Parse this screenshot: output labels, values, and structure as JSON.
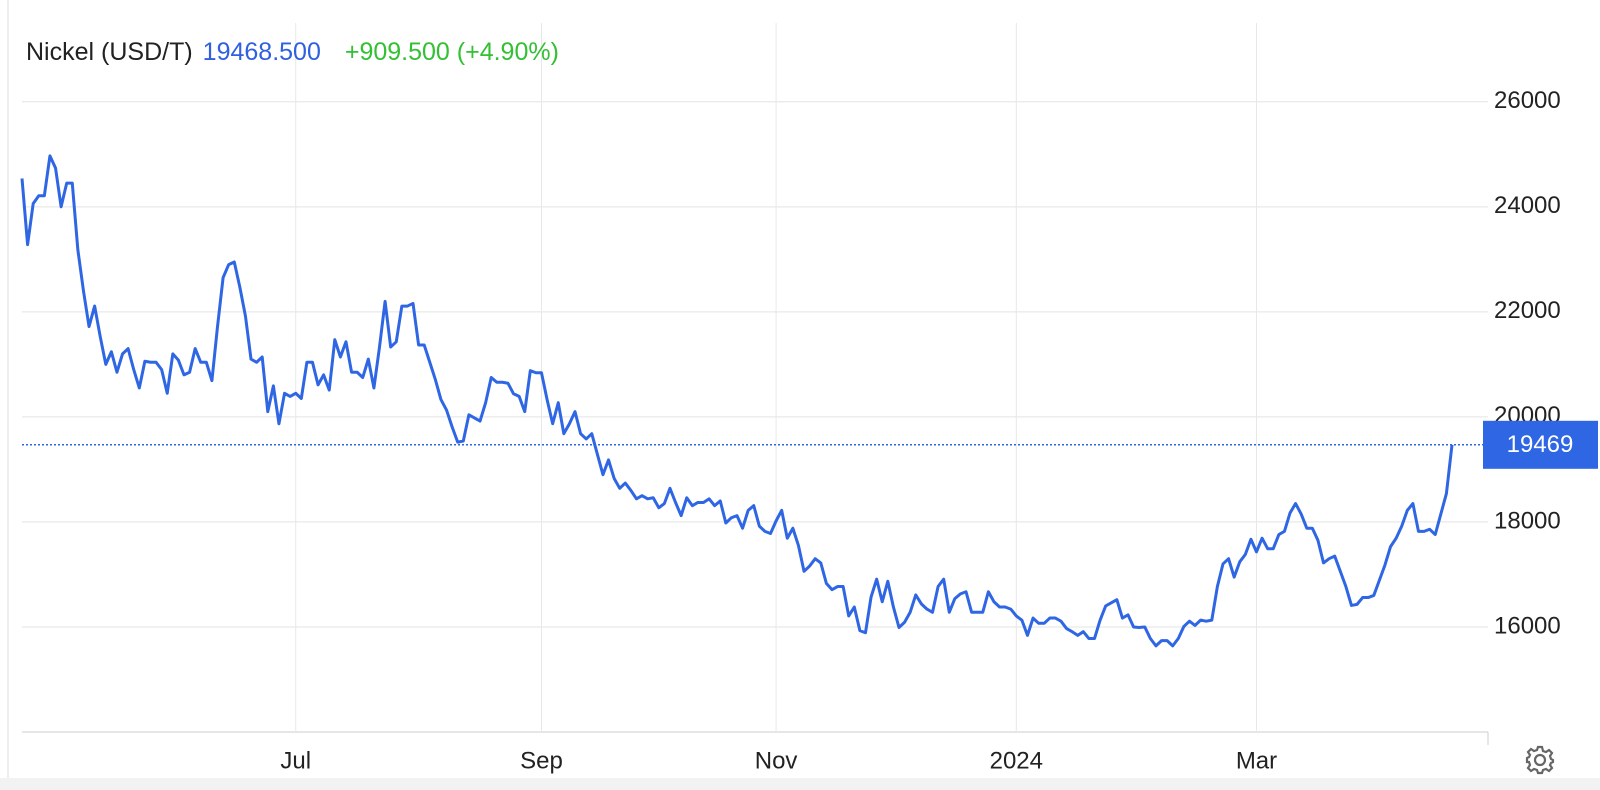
{
  "chart_data": {
    "type": "line",
    "title": "Nickel (USD/T)",
    "last": "19468.500",
    "change": "+909.500 (+4.90%)",
    "categories": [
      null,
      null,
      null,
      null,
      null,
      null,
      null,
      null,
      null,
      null,
      null,
      null,
      null,
      null,
      null,
      null,
      null,
      null,
      null,
      null,
      null,
      null,
      null,
      null,
      null,
      null,
      null,
      null,
      null,
      null,
      null,
      null,
      null,
      null,
      null,
      null,
      null,
      null,
      null,
      null,
      null,
      null,
      null,
      null,
      null,
      null,
      null,
      null,
      null,
      "Jul",
      null,
      null,
      null,
      null,
      null,
      null,
      null,
      null,
      null,
      null,
      null,
      null,
      null,
      null,
      null,
      null,
      null,
      null,
      null,
      null,
      null,
      null,
      null,
      null,
      null,
      null,
      null,
      null,
      null,
      null,
      null,
      null,
      null,
      null,
      null,
      null,
      null,
      null,
      null,
      null,
      null,
      null,
      null,
      "Sep",
      null,
      null,
      null,
      null,
      null,
      null,
      null,
      null,
      null,
      null,
      null,
      null,
      null,
      null,
      null,
      null,
      null,
      null,
      null,
      null,
      null,
      null,
      null,
      null,
      null,
      null,
      null,
      null,
      null,
      null,
      null,
      null,
      null,
      null,
      null,
      null,
      null,
      null,
      null,
      null,
      null,
      "Nov",
      null,
      null,
      null,
      null,
      null,
      null,
      null,
      null,
      null,
      null,
      null,
      null,
      null,
      null,
      null,
      null,
      null,
      null,
      null,
      null,
      null,
      null,
      null,
      null,
      null,
      null,
      null,
      null,
      null,
      null,
      null,
      null,
      null,
      null,
      null,
      null,
      null,
      null,
      null,
      null,
      null,
      null,
      "2024",
      null,
      null,
      null,
      null,
      null,
      null,
      null,
      null,
      null,
      null,
      null,
      null,
      null,
      null,
      null,
      null,
      null,
      null,
      null,
      null,
      null,
      null,
      null,
      null,
      null,
      null,
      null,
      null,
      null,
      null,
      null,
      null,
      null,
      null,
      null,
      null,
      null,
      null,
      null,
      null,
      null,
      null,
      "Mar",
      null,
      null,
      null,
      null,
      null,
      null,
      null,
      null,
      null,
      null,
      null,
      null,
      null,
      null,
      null,
      null,
      null,
      null,
      null,
      null,
      null,
      null,
      null,
      null,
      null,
      null,
      null,
      null,
      null,
      null,
      null,
      null,
      null,
      null,
      null
    ],
    "series": [
      {
        "name": "Nickel (USD/T)",
        "color": "#2f66e4",
        "values": [
          24540,
          23280,
          24060,
          24210,
          24210,
          24970,
          24740,
          24000,
          24450,
          24450,
          23180,
          22400,
          21720,
          22110,
          21530,
          21000,
          21240,
          20850,
          21200,
          21300,
          20900,
          20550,
          21060,
          21040,
          21040,
          20900,
          20450,
          21200,
          21080,
          20800,
          20850,
          21300,
          21040,
          21040,
          20690,
          21720,
          22650,
          22900,
          22950,
          22470,
          21920,
          21100,
          21040,
          21140,
          20100,
          20590,
          19870,
          20450,
          20390,
          20450,
          20350,
          21040,
          21040,
          20610,
          20800,
          20510,
          21470,
          21140,
          21430,
          20850,
          20850,
          20750,
          21100,
          20550,
          21330,
          22200,
          21330,
          21430,
          22110,
          22110,
          22160,
          21370,
          21370,
          21040,
          20710,
          20330,
          20130,
          19810,
          19520,
          19540,
          20040,
          19980,
          19920,
          20270,
          20750,
          20660,
          20660,
          20640,
          20440,
          20390,
          20100,
          20880,
          20840,
          20840,
          20330,
          19870,
          20270,
          19680,
          19870,
          20100,
          19680,
          19580,
          19680,
          19290,
          18900,
          19180,
          18830,
          18640,
          18740,
          18600,
          18440,
          18500,
          18440,
          18460,
          18270,
          18350,
          18640,
          18370,
          18120,
          18460,
          18310,
          18370,
          18370,
          18440,
          18310,
          18400,
          17980,
          18080,
          18120,
          17880,
          18220,
          18310,
          17920,
          17820,
          17780,
          18020,
          18220,
          17690,
          17880,
          17550,
          17060,
          17160,
          17300,
          17220,
          16830,
          16710,
          16770,
          16770,
          16210,
          16380,
          15930,
          15890,
          16570,
          16910,
          16480,
          16870,
          16380,
          15990,
          16090,
          16280,
          16610,
          16440,
          16340,
          16280,
          16770,
          16910,
          16280,
          16540,
          16630,
          16670,
          16280,
          16280,
          16280,
          16670,
          16480,
          16380,
          16380,
          16340,
          16210,
          16130,
          15840,
          16170,
          16070,
          16070,
          16170,
          16170,
          16110,
          15970,
          15910,
          15840,
          15910,
          15780,
          15780,
          16130,
          16400,
          16460,
          16520,
          16170,
          16230,
          16000,
          15990,
          16000,
          15780,
          15640,
          15740,
          15740,
          15640,
          15780,
          16010,
          16110,
          16030,
          16130,
          16110,
          16130,
          16770,
          17200,
          17300,
          16950,
          17240,
          17380,
          17670,
          17430,
          17690,
          17490,
          17490,
          17760,
          17820,
          18170,
          18350,
          18150,
          17880,
          17880,
          17650,
          17220,
          17300,
          17350,
          17060,
          16770,
          16410,
          16430,
          16560,
          16560,
          16600,
          16890,
          17180,
          17530,
          17690,
          17920,
          18220,
          18350,
          17820,
          17820,
          17860,
          17760,
          18150,
          18540,
          19468.5
        ]
      }
    ],
    "price_tag": {
      "value": 19468.5,
      "label": "19469"
    },
    "ylim": [
      14000,
      27500
    ],
    "yticks": [
      16000,
      18000,
      20000,
      22000,
      24000,
      26000
    ],
    "grid": true
  }
}
